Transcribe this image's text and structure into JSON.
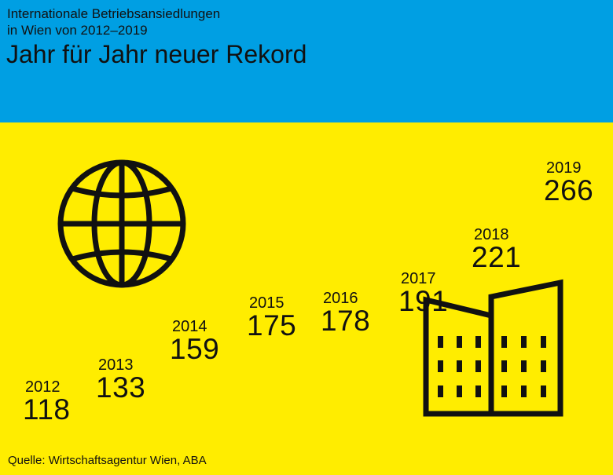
{
  "header": {
    "subtitle_line1": "Internationale Betriebsansiedlungen",
    "subtitle_line2": "in Wien von 2012–2019",
    "title": "Jahr für Jahr neuer Rekord"
  },
  "source": "Quelle: Wirtschaftsagentur Wien, ABA",
  "icons": [
    "globe-icon",
    "buildings-icon"
  ],
  "colors": {
    "header_bg": "#009fe3",
    "body_bg": "#ffed00",
    "text": "#111111"
  },
  "chart_data": {
    "type": "table",
    "categories": [
      "2012",
      "2013",
      "2014",
      "2015",
      "2016",
      "2017",
      "2018",
      "2019"
    ],
    "values": [
      118,
      133,
      159,
      175,
      178,
      191,
      221,
      266
    ]
  }
}
